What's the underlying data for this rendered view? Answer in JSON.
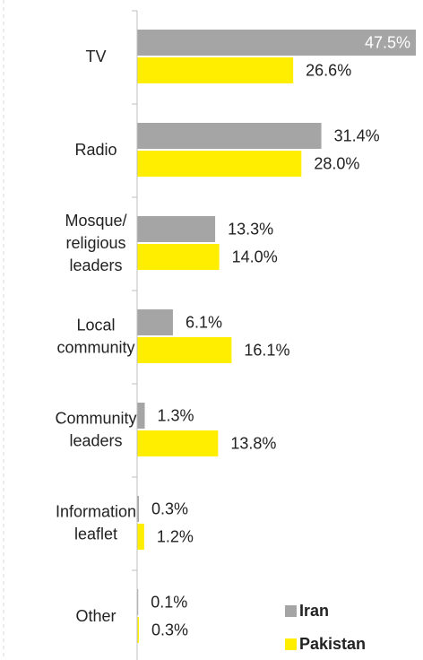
{
  "chart_data": {
    "type": "bar",
    "orientation": "horizontal",
    "categories": [
      [
        "TV"
      ],
      [
        "Radio"
      ],
      [
        "Mosque/",
        "religious",
        "leaders"
      ],
      [
        "Local",
        "community"
      ],
      [
        "Community",
        "leaders"
      ],
      [
        "Information",
        "leaflet"
      ],
      [
        "Other"
      ]
    ],
    "series": [
      {
        "name": "Iran",
        "color": "#a5a5a5",
        "values": [
          47.5,
          31.4,
          13.3,
          6.1,
          1.3,
          0.3,
          0.1
        ],
        "labels": [
          "47.5%",
          "31.4%",
          "13.3%",
          "6.1%",
          "1.3%",
          "0.3%",
          "0.1%"
        ]
      },
      {
        "name": "Pakistan",
        "color": "#ffee00",
        "values": [
          26.6,
          28.0,
          14.0,
          16.1,
          13.8,
          1.2,
          0.3
        ],
        "labels": [
          "26.6%",
          "28.0%",
          "14.0%",
          "16.1%",
          "13.8%",
          "1.2%",
          "0.3%"
        ]
      }
    ],
    "xlim": [
      0,
      47.5
    ],
    "grid": false,
    "legend_position": "bottom-right"
  }
}
